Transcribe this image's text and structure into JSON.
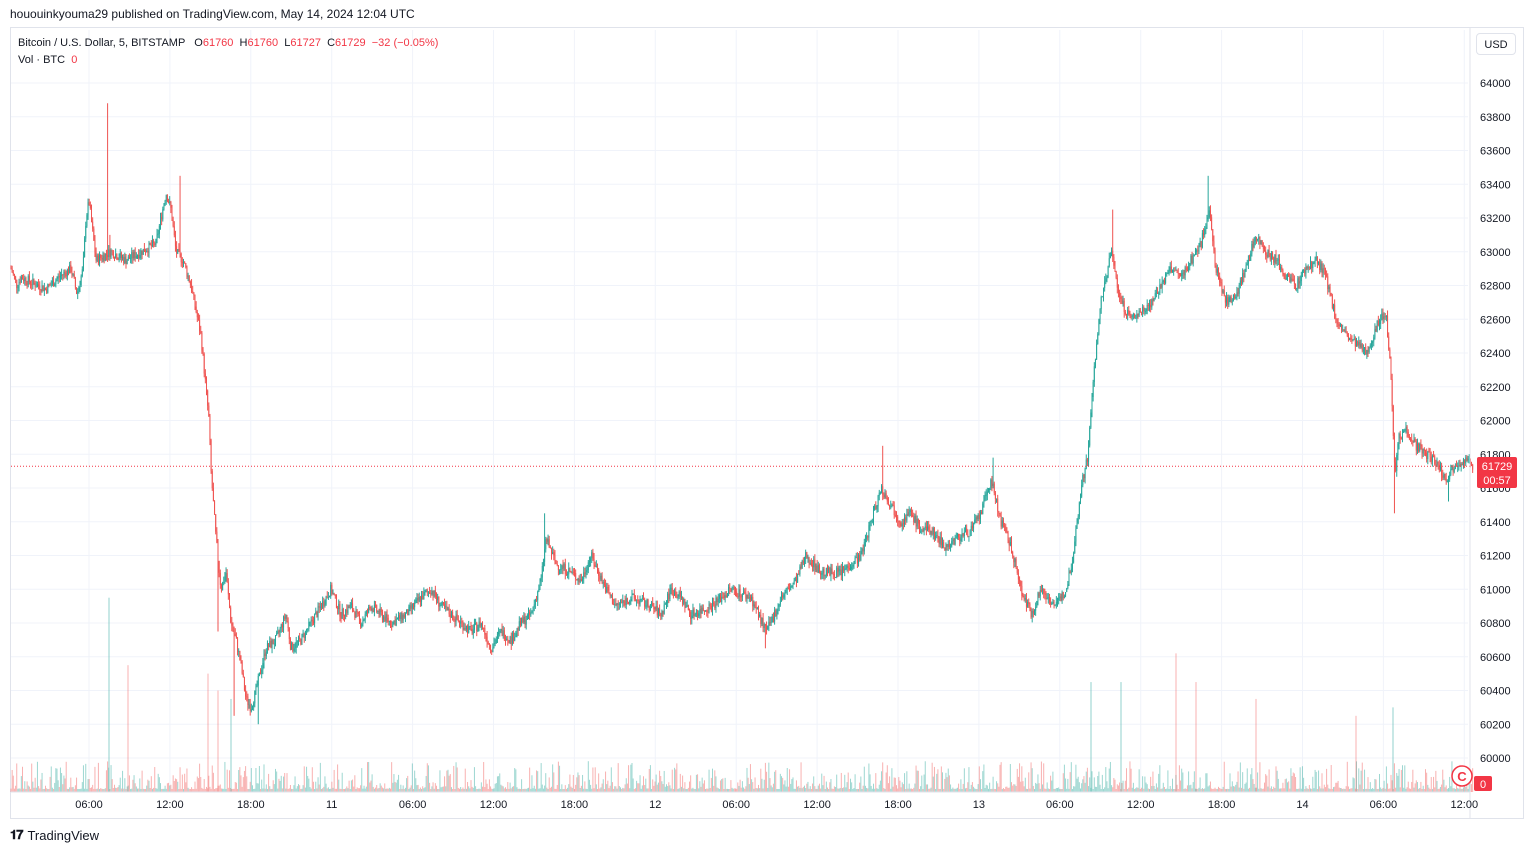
{
  "header": {
    "published": "hououinkyouma29 published on TradingView.com, May 14, 2024 12:04 UTC"
  },
  "legend": {
    "symbol": "Bitcoin / U.S. Dollar, 5, BITSTAMP",
    "o_label": "O",
    "o_value": "61760",
    "h_label": "H",
    "h_value": "61760",
    "l_label": "L",
    "l_value": "61727",
    "c_label": "C",
    "c_value": "61729",
    "change": "−32 (−0.05%)",
    "vol_label": "Vol · BTC",
    "vol_value": "0"
  },
  "currency_button": "USD",
  "price_tag": {
    "price": "61729",
    "countdown": "00:57"
  },
  "volume_tag": "0",
  "footer": {
    "brand": "TradingView",
    "logo": "tradingview-logo-icon"
  },
  "colors": {
    "up": "#26a69a",
    "down": "#ef5350",
    "price_tag": "#f23645",
    "grid": "#f0f3fa"
  },
  "chart_data": {
    "type": "candlestick",
    "interval": "5 min",
    "ylim": [
      60000,
      64000
    ],
    "y_ticks": [
      60000,
      60200,
      60400,
      60600,
      60800,
      61000,
      61200,
      61400,
      61600,
      61800,
      62000,
      62200,
      62400,
      62600,
      62800,
      63000,
      63200,
      63400,
      63600,
      63800,
      64000
    ],
    "x_ticks": [
      "06:00",
      "12:00",
      "18:00",
      "11",
      "06:00",
      "12:00",
      "18:00",
      "12",
      "06:00",
      "12:00",
      "18:00",
      "13",
      "06:00",
      "12:00",
      "18:00",
      "14",
      "06:00",
      "12:00"
    ],
    "last_price": 61729,
    "price_path": [
      [
        0,
        62900
      ],
      [
        6,
        62800
      ],
      [
        10,
        62850
      ],
      [
        20,
        62820
      ],
      [
        35,
        62780
      ],
      [
        50,
        62860
      ],
      [
        60,
        62900
      ],
      [
        66,
        62750
      ],
      [
        72,
        62900
      ],
      [
        75,
        63200
      ],
      [
        78,
        63300
      ],
      [
        85,
        62950
      ],
      [
        100,
        63000
      ],
      [
        115,
        62950
      ],
      [
        130,
        63000
      ],
      [
        145,
        63050
      ],
      [
        155,
        63350
      ],
      [
        160,
        63250
      ],
      [
        165,
        63000
      ],
      [
        172,
        62950
      ],
      [
        180,
        62800
      ],
      [
        190,
        62500
      ],
      [
        198,
        62000
      ],
      [
        200,
        61700
      ],
      [
        205,
        61300
      ],
      [
        210,
        61000
      ],
      [
        215,
        61100
      ],
      [
        220,
        60800
      ],
      [
        225,
        60700
      ],
      [
        230,
        60550
      ],
      [
        235,
        60350
      ],
      [
        240,
        60300
      ],
      [
        245,
        60400
      ],
      [
        255,
        60650
      ],
      [
        265,
        60700
      ],
      [
        275,
        60850
      ],
      [
        280,
        60650
      ],
      [
        290,
        60700
      ],
      [
        300,
        60800
      ],
      [
        310,
        60900
      ],
      [
        320,
        61000
      ],
      [
        330,
        60850
      ],
      [
        340,
        60900
      ],
      [
        350,
        60800
      ],
      [
        360,
        60900
      ],
      [
        380,
        60800
      ],
      [
        395,
        60850
      ],
      [
        410,
        60950
      ],
      [
        420,
        61000
      ],
      [
        430,
        60900
      ],
      [
        440,
        60850
      ],
      [
        450,
        60800
      ],
      [
        460,
        60750
      ],
      [
        470,
        60800
      ],
      [
        480,
        60650
      ],
      [
        490,
        60750
      ],
      [
        500,
        60700
      ],
      [
        510,
        60800
      ],
      [
        520,
        60850
      ],
      [
        525,
        60950
      ],
      [
        530,
        61050
      ],
      [
        535,
        61300
      ],
      [
        545,
        61150
      ],
      [
        560,
        61100
      ],
      [
        570,
        61050
      ],
      [
        580,
        61200
      ],
      [
        595,
        61000
      ],
      [
        605,
        60900
      ],
      [
        620,
        60950
      ],
      [
        640,
        60900
      ],
      [
        650,
        60850
      ],
      [
        660,
        61000
      ],
      [
        670,
        60950
      ],
      [
        680,
        60850
      ],
      [
        700,
        60900
      ],
      [
        720,
        61000
      ],
      [
        740,
        60950
      ],
      [
        755,
        60750
      ],
      [
        760,
        60800
      ],
      [
        770,
        60950
      ],
      [
        785,
        61050
      ],
      [
        795,
        61200
      ],
      [
        810,
        61100
      ],
      [
        830,
        61100
      ],
      [
        850,
        61200
      ],
      [
        860,
        61400
      ],
      [
        870,
        61600
      ],
      [
        880,
        61500
      ],
      [
        890,
        61400
      ],
      [
        900,
        61450
      ],
      [
        910,
        61350
      ],
      [
        920,
        61350
      ],
      [
        935,
        61250
      ],
      [
        945,
        61300
      ],
      [
        960,
        61350
      ],
      [
        970,
        61450
      ],
      [
        980,
        61650
      ],
      [
        990,
        61400
      ],
      [
        1000,
        61250
      ],
      [
        1010,
        61000
      ],
      [
        1020,
        60850
      ],
      [
        1030,
        61000
      ],
      [
        1045,
        60900
      ],
      [
        1055,
        61000
      ],
      [
        1062,
        61200
      ],
      [
        1070,
        61600
      ],
      [
        1077,
        61800
      ],
      [
        1083,
        62300
      ],
      [
        1090,
        62700
      ],
      [
        1100,
        63000
      ],
      [
        1110,
        62700
      ],
      [
        1120,
        62600
      ],
      [
        1130,
        62650
      ],
      [
        1140,
        62700
      ],
      [
        1150,
        62800
      ],
      [
        1160,
        62900
      ],
      [
        1170,
        62850
      ],
      [
        1180,
        62950
      ],
      [
        1190,
        63050
      ],
      [
        1198,
        63250
      ],
      [
        1205,
        62900
      ],
      [
        1215,
        62700
      ],
      [
        1225,
        62750
      ],
      [
        1235,
        62900
      ],
      [
        1245,
        63100
      ],
      [
        1255,
        63000
      ],
      [
        1265,
        62950
      ],
      [
        1275,
        62850
      ],
      [
        1285,
        62800
      ],
      [
        1295,
        62900
      ],
      [
        1305,
        62950
      ],
      [
        1315,
        62850
      ],
      [
        1325,
        62600
      ],
      [
        1335,
        62500
      ],
      [
        1345,
        62450
      ],
      [
        1355,
        62400
      ],
      [
        1365,
        62550
      ],
      [
        1375,
        62650
      ],
      [
        1380,
        62250
      ],
      [
        1384,
        61700
      ],
      [
        1388,
        61900
      ],
      [
        1395,
        61950
      ],
      [
        1405,
        61850
      ],
      [
        1415,
        61800
      ],
      [
        1425,
        61750
      ],
      [
        1435,
        61650
      ],
      [
        1445,
        61750
      ],
      [
        1455,
        61760
      ],
      [
        1462,
        61729
      ]
    ],
    "price_spikes": [
      [
        98,
        63880
      ],
      [
        100,
        63100
      ],
      [
        170,
        63450
      ],
      [
        208,
        60750
      ],
      [
        224,
        60250
      ],
      [
        248,
        60200
      ],
      [
        535,
        61450
      ],
      [
        873,
        61850
      ],
      [
        983,
        61780
      ],
      [
        1103,
        63250
      ],
      [
        1198,
        63450
      ],
      [
        1384,
        61450
      ],
      [
        1438,
        61520
      ],
      [
        240,
        60350
      ],
      [
        480,
        60650
      ],
      [
        755,
        60650
      ]
    ],
    "volume_spikes": [
      [
        98,
        60950
      ],
      [
        117,
        60550
      ],
      [
        197,
        60500
      ],
      [
        207,
        60400
      ],
      [
        220,
        60350
      ],
      [
        1080,
        60450
      ],
      [
        1110,
        60450
      ],
      [
        1165,
        60620
      ],
      [
        1185,
        60450
      ],
      [
        1245,
        60350
      ],
      [
        1382,
        60300
      ],
      [
        1345,
        60250
      ]
    ]
  }
}
